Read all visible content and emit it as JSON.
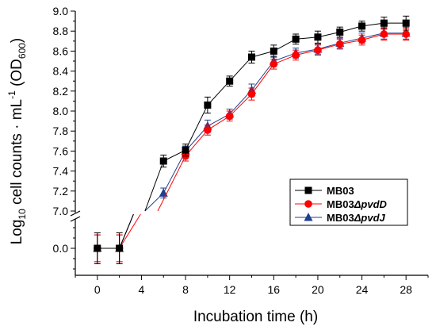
{
  "chart_data": {
    "type": "line",
    "xlabel": "Incubation time (h)",
    "ylabel": {
      "prefix": "Log",
      "log_base": "10",
      "middle": " cell counts · mL",
      "exponent": "-1",
      "suffix_open": " (OD",
      "od_subscript": "600",
      "suffix_close": ")"
    },
    "x_ticks": [
      0,
      4,
      8,
      12,
      16,
      20,
      24,
      28
    ],
    "x_tick_labels": [
      "0",
      "4",
      "8",
      "12",
      "16",
      "20",
      "24",
      "28"
    ],
    "xlim": [
      -2,
      30
    ],
    "y_axis_break": {
      "lower_range": [
        -0.3,
        0.3
      ],
      "upper_range": [
        7.0,
        9.0
      ]
    },
    "y_ticks_upper": [
      7.0,
      7.2,
      7.4,
      7.6,
      7.8,
      8.0,
      8.2,
      8.4,
      8.6,
      8.8,
      9.0
    ],
    "y_tick_labels_upper": [
      "7.0",
      "7.2",
      "7.4",
      "7.6",
      "7.8",
      "8.0",
      "8.2",
      "8.4",
      "8.6",
      "8.8",
      "9.0"
    ],
    "y_ticks_lower": [
      0.0
    ],
    "y_tick_labels_lower": [
      "0.0"
    ],
    "legend_position": "lower-right",
    "series": [
      {
        "name": "MB03",
        "italic_part": "",
        "color": "#000000",
        "marker": "square",
        "x": [
          0,
          2,
          6,
          8,
          10,
          12,
          14,
          16,
          18,
          20,
          22,
          24,
          26,
          28
        ],
        "y": [
          0.0,
          0.0,
          7.5,
          7.61,
          8.06,
          8.3,
          8.54,
          8.6,
          8.72,
          8.74,
          8.79,
          8.85,
          8.88,
          8.88
        ],
        "err": [
          0.15,
          0.15,
          0.06,
          0.06,
          0.08,
          0.05,
          0.06,
          0.06,
          0.05,
          0.06,
          0.05,
          0.05,
          0.06,
          0.07
        ]
      },
      {
        "name": "MB03",
        "italic_part": "ΔpvdD",
        "color": "#ff0000",
        "marker": "circle",
        "x": [
          0,
          2,
          8,
          10,
          12,
          14,
          16,
          18,
          20,
          22,
          24,
          26,
          28
        ],
        "y": [
          0.0,
          0.0,
          7.55,
          7.81,
          7.95,
          8.17,
          8.47,
          8.56,
          8.61,
          8.67,
          8.71,
          8.77,
          8.77
        ],
        "err": [
          0.13,
          0.13,
          0.05,
          0.05,
          0.05,
          0.06,
          0.05,
          0.05,
          0.05,
          0.05,
          0.05,
          0.06,
          0.06
        ]
      },
      {
        "name": "MB03",
        "italic_part": "ΔpvdJ",
        "color": "#1f3f8f",
        "marker": "triangle",
        "x": [
          0,
          2,
          6,
          8,
          10,
          12,
          14,
          16,
          18,
          20,
          22,
          24,
          26,
          28
        ],
        "y": [
          0.0,
          0.0,
          7.18,
          7.6,
          7.85,
          7.97,
          8.21,
          8.5,
          8.58,
          8.62,
          8.68,
          8.73,
          8.78,
          8.78
        ],
        "err": [
          0.13,
          0.13,
          0.05,
          0.05,
          0.06,
          0.05,
          0.06,
          0.05,
          0.05,
          0.05,
          0.05,
          0.05,
          0.06,
          0.06
        ]
      }
    ]
  }
}
